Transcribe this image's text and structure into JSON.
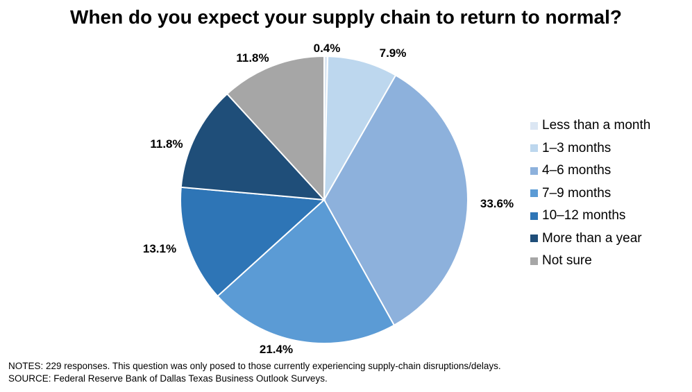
{
  "chart_data": {
    "type": "pie",
    "title": "When do you expect your supply chain to return to normal?",
    "legend_position": "right",
    "slices": [
      {
        "name": "Less than a month",
        "value": 0.4,
        "label": "0.4%",
        "color": "#dbe6f3"
      },
      {
        "name": "1–3 months",
        "value": 7.9,
        "label": "7.9%",
        "color": "#bdd7ee"
      },
      {
        "name": "4–6 months",
        "value": 33.6,
        "label": "33.6%",
        "color": "#8db1dc"
      },
      {
        "name": "7–9 months",
        "value": 21.4,
        "label": "21.4%",
        "color": "#5b9bd5"
      },
      {
        "name": "10–12 months",
        "value": 13.1,
        "label": "13.1%",
        "color": "#2e75b6"
      },
      {
        "name": "More than a year",
        "value": 11.8,
        "label": "11.8%",
        "color": "#1f4e79"
      },
      {
        "name": "Not sure",
        "value": 11.8,
        "label": "11.8%",
        "color": "#a6a6a6"
      }
    ]
  },
  "notes": {
    "line1": "NOTES: 229 responses. This question was only posed to those currently experiencing supply-chain disruptions/delays.",
    "line2": "SOURCE: Federal Reserve Bank of Dallas Texas Business Outlook Surveys."
  }
}
